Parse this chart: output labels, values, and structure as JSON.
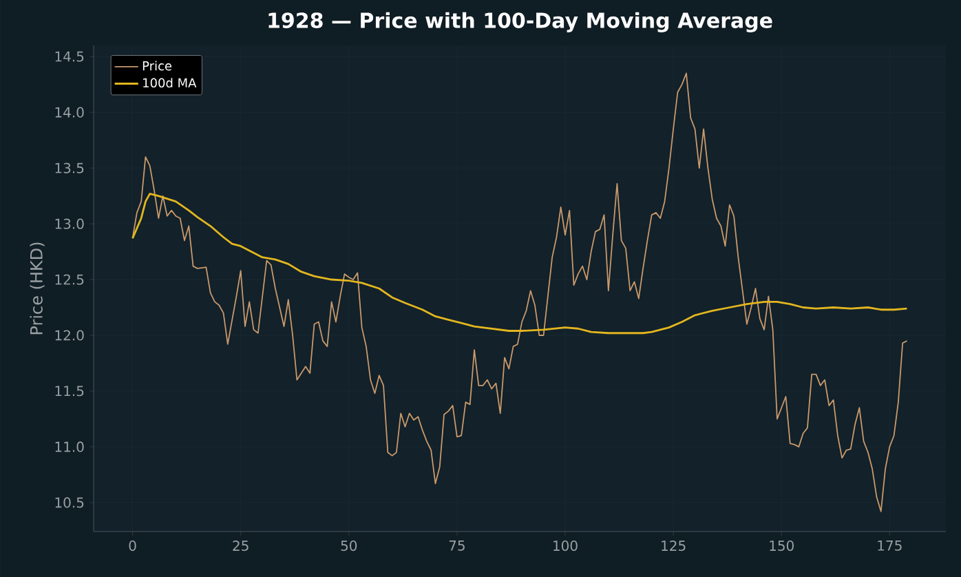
{
  "chart_data": {
    "type": "line",
    "title": "1928 — Price with 100-Day Moving Average",
    "ylabel": "Price (HKD)",
    "xlim": [
      -9,
      188
    ],
    "ylim": [
      10.24,
      14.6
    ],
    "xticks": [
      0,
      25,
      50,
      75,
      100,
      125,
      150,
      175
    ],
    "yticks": [
      10.5,
      {
        "value": 11,
        "label": "11.0"
      },
      11.5,
      {
        "value": 12,
        "label": "12.0"
      },
      12.5,
      {
        "value": 13,
        "label": "13.0"
      },
      13.5,
      {
        "value": 14,
        "label": "14.0"
      },
      14.5
    ],
    "grid": true,
    "legend": "top left",
    "line_style": "solid",
    "marker": "none",
    "series": [
      {
        "name": "Price",
        "color": "#c9996b",
        "x": [
          0,
          1,
          2,
          3,
          4,
          5,
          6,
          7,
          8,
          9,
          10,
          11,
          12,
          13,
          14,
          15,
          17,
          18,
          19,
          20,
          21,
          22,
          24,
          25,
          26,
          27,
          28,
          29,
          31,
          32,
          33,
          35,
          36,
          37,
          38,
          40,
          41,
          42,
          43,
          44,
          45,
          46,
          47,
          48,
          49,
          50,
          51,
          52,
          53,
          54,
          55,
          56,
          57,
          58,
          59,
          60,
          61,
          62,
          63,
          64,
          65,
          66,
          67,
          68,
          69,
          70,
          71,
          72,
          73,
          74,
          75,
          76,
          77,
          78,
          79,
          80,
          81,
          82,
          83,
          84,
          85,
          86,
          87,
          88,
          89,
          90,
          91,
          92,
          93,
          94,
          95,
          96,
          97,
          98,
          99,
          100,
          101,
          102,
          103,
          104,
          105,
          106,
          107,
          108,
          109,
          110,
          111,
          112,
          113,
          114,
          115,
          116,
          117,
          118,
          119,
          120,
          121,
          122,
          123,
          124,
          125,
          126,
          127,
          128,
          129,
          130,
          131,
          132,
          133,
          134,
          135,
          136,
          137,
          138,
          139,
          140,
          141,
          142,
          143,
          144,
          145,
          146,
          147,
          148,
          149,
          150,
          151,
          152,
          153,
          154,
          155,
          156,
          157,
          158,
          159,
          160,
          161,
          162,
          163,
          164,
          165,
          166,
          167,
          168,
          169,
          170,
          171,
          172,
          173,
          174,
          175,
          176,
          177,
          178,
          179
        ],
        "values": [
          12.87,
          13.1,
          13.2,
          13.6,
          13.52,
          13.3,
          13.05,
          13.25,
          13.07,
          13.12,
          13.07,
          13.05,
          12.85,
          12.98,
          12.62,
          12.6,
          12.61,
          12.38,
          12.3,
          12.27,
          12.2,
          11.92,
          12.35,
          12.58,
          12.08,
          12.3,
          12.05,
          12.02,
          12.67,
          12.63,
          12.42,
          12.08,
          12.32,
          12.0,
          11.6,
          11.72,
          11.66,
          12.1,
          12.12,
          11.95,
          11.9,
          12.3,
          12.12,
          12.35,
          12.55,
          12.52,
          12.5,
          12.56,
          12.07,
          11.9,
          11.6,
          11.48,
          11.64,
          11.55,
          10.95,
          10.92,
          10.95,
          11.3,
          11.18,
          11.3,
          11.24,
          11.27,
          11.15,
          11.05,
          10.97,
          10.67,
          10.82,
          11.29,
          11.32,
          11.37,
          11.09,
          11.1,
          11.4,
          11.38,
          11.87,
          11.55,
          11.55,
          11.6,
          11.52,
          11.57,
          11.3,
          11.8,
          11.7,
          11.9,
          11.92,
          12.12,
          12.22,
          12.4,
          12.27,
          12.0,
          12.0,
          12.35,
          12.7,
          12.88,
          13.15,
          12.9,
          13.12,
          12.45,
          12.55,
          12.62,
          12.5,
          12.75,
          12.93,
          12.95,
          13.08,
          12.4,
          12.9,
          13.36,
          12.85,
          12.78,
          12.4,
          12.48,
          12.33,
          12.6,
          12.85,
          13.08,
          13.1,
          13.05,
          13.2,
          13.5,
          13.85,
          14.18,
          14.25,
          14.35,
          13.95,
          13.85,
          13.5,
          13.85,
          13.5,
          13.22,
          13.05,
          12.98,
          12.8,
          13.17,
          13.07,
          12.7,
          12.4,
          12.1,
          12.25,
          12.42,
          12.15,
          12.05,
          12.35,
          12.05,
          11.25,
          11.35,
          11.45,
          11.03,
          11.02,
          11.0,
          11.12,
          11.17,
          11.65,
          11.65,
          11.55,
          11.6,
          11.37,
          11.42,
          11.1,
          10.9,
          10.97,
          10.98,
          11.2,
          11.35,
          11.05,
          10.95,
          10.8,
          10.55,
          10.42,
          10.8,
          11.0,
          11.1,
          11.4,
          11.93,
          11.95
        ]
      },
      {
        "name": "100d MA",
        "color": "#e3b61f",
        "x": [
          0,
          2,
          3,
          4,
          6,
          10,
          13,
          15,
          18,
          21,
          23,
          25,
          28,
          30,
          33,
          36,
          39,
          42,
          46,
          50,
          53,
          57,
          60,
          63,
          67,
          70,
          73,
          76,
          79,
          83,
          87,
          90,
          95,
          100,
          103,
          106,
          110,
          115,
          118,
          120,
          124,
          127,
          130,
          134,
          138,
          142,
          146,
          149,
          152,
          155,
          158,
          162,
          166,
          170,
          173,
          176,
          179
        ],
        "values": [
          12.87,
          13.05,
          13.2,
          13.27,
          13.25,
          13.2,
          13.12,
          13.06,
          12.98,
          12.88,
          12.82,
          12.8,
          12.74,
          12.7,
          12.68,
          12.64,
          12.57,
          12.53,
          12.5,
          12.49,
          12.47,
          12.42,
          12.34,
          12.29,
          12.23,
          12.17,
          12.14,
          12.11,
          12.08,
          12.06,
          12.04,
          12.04,
          12.05,
          12.07,
          12.06,
          12.03,
          12.02,
          12.02,
          12.02,
          12.03,
          12.07,
          12.12,
          12.18,
          12.22,
          12.25,
          12.28,
          12.3,
          12.3,
          12.28,
          12.25,
          12.24,
          12.25,
          12.24,
          12.25,
          12.23,
          12.23,
          12.24
        ]
      }
    ]
  }
}
